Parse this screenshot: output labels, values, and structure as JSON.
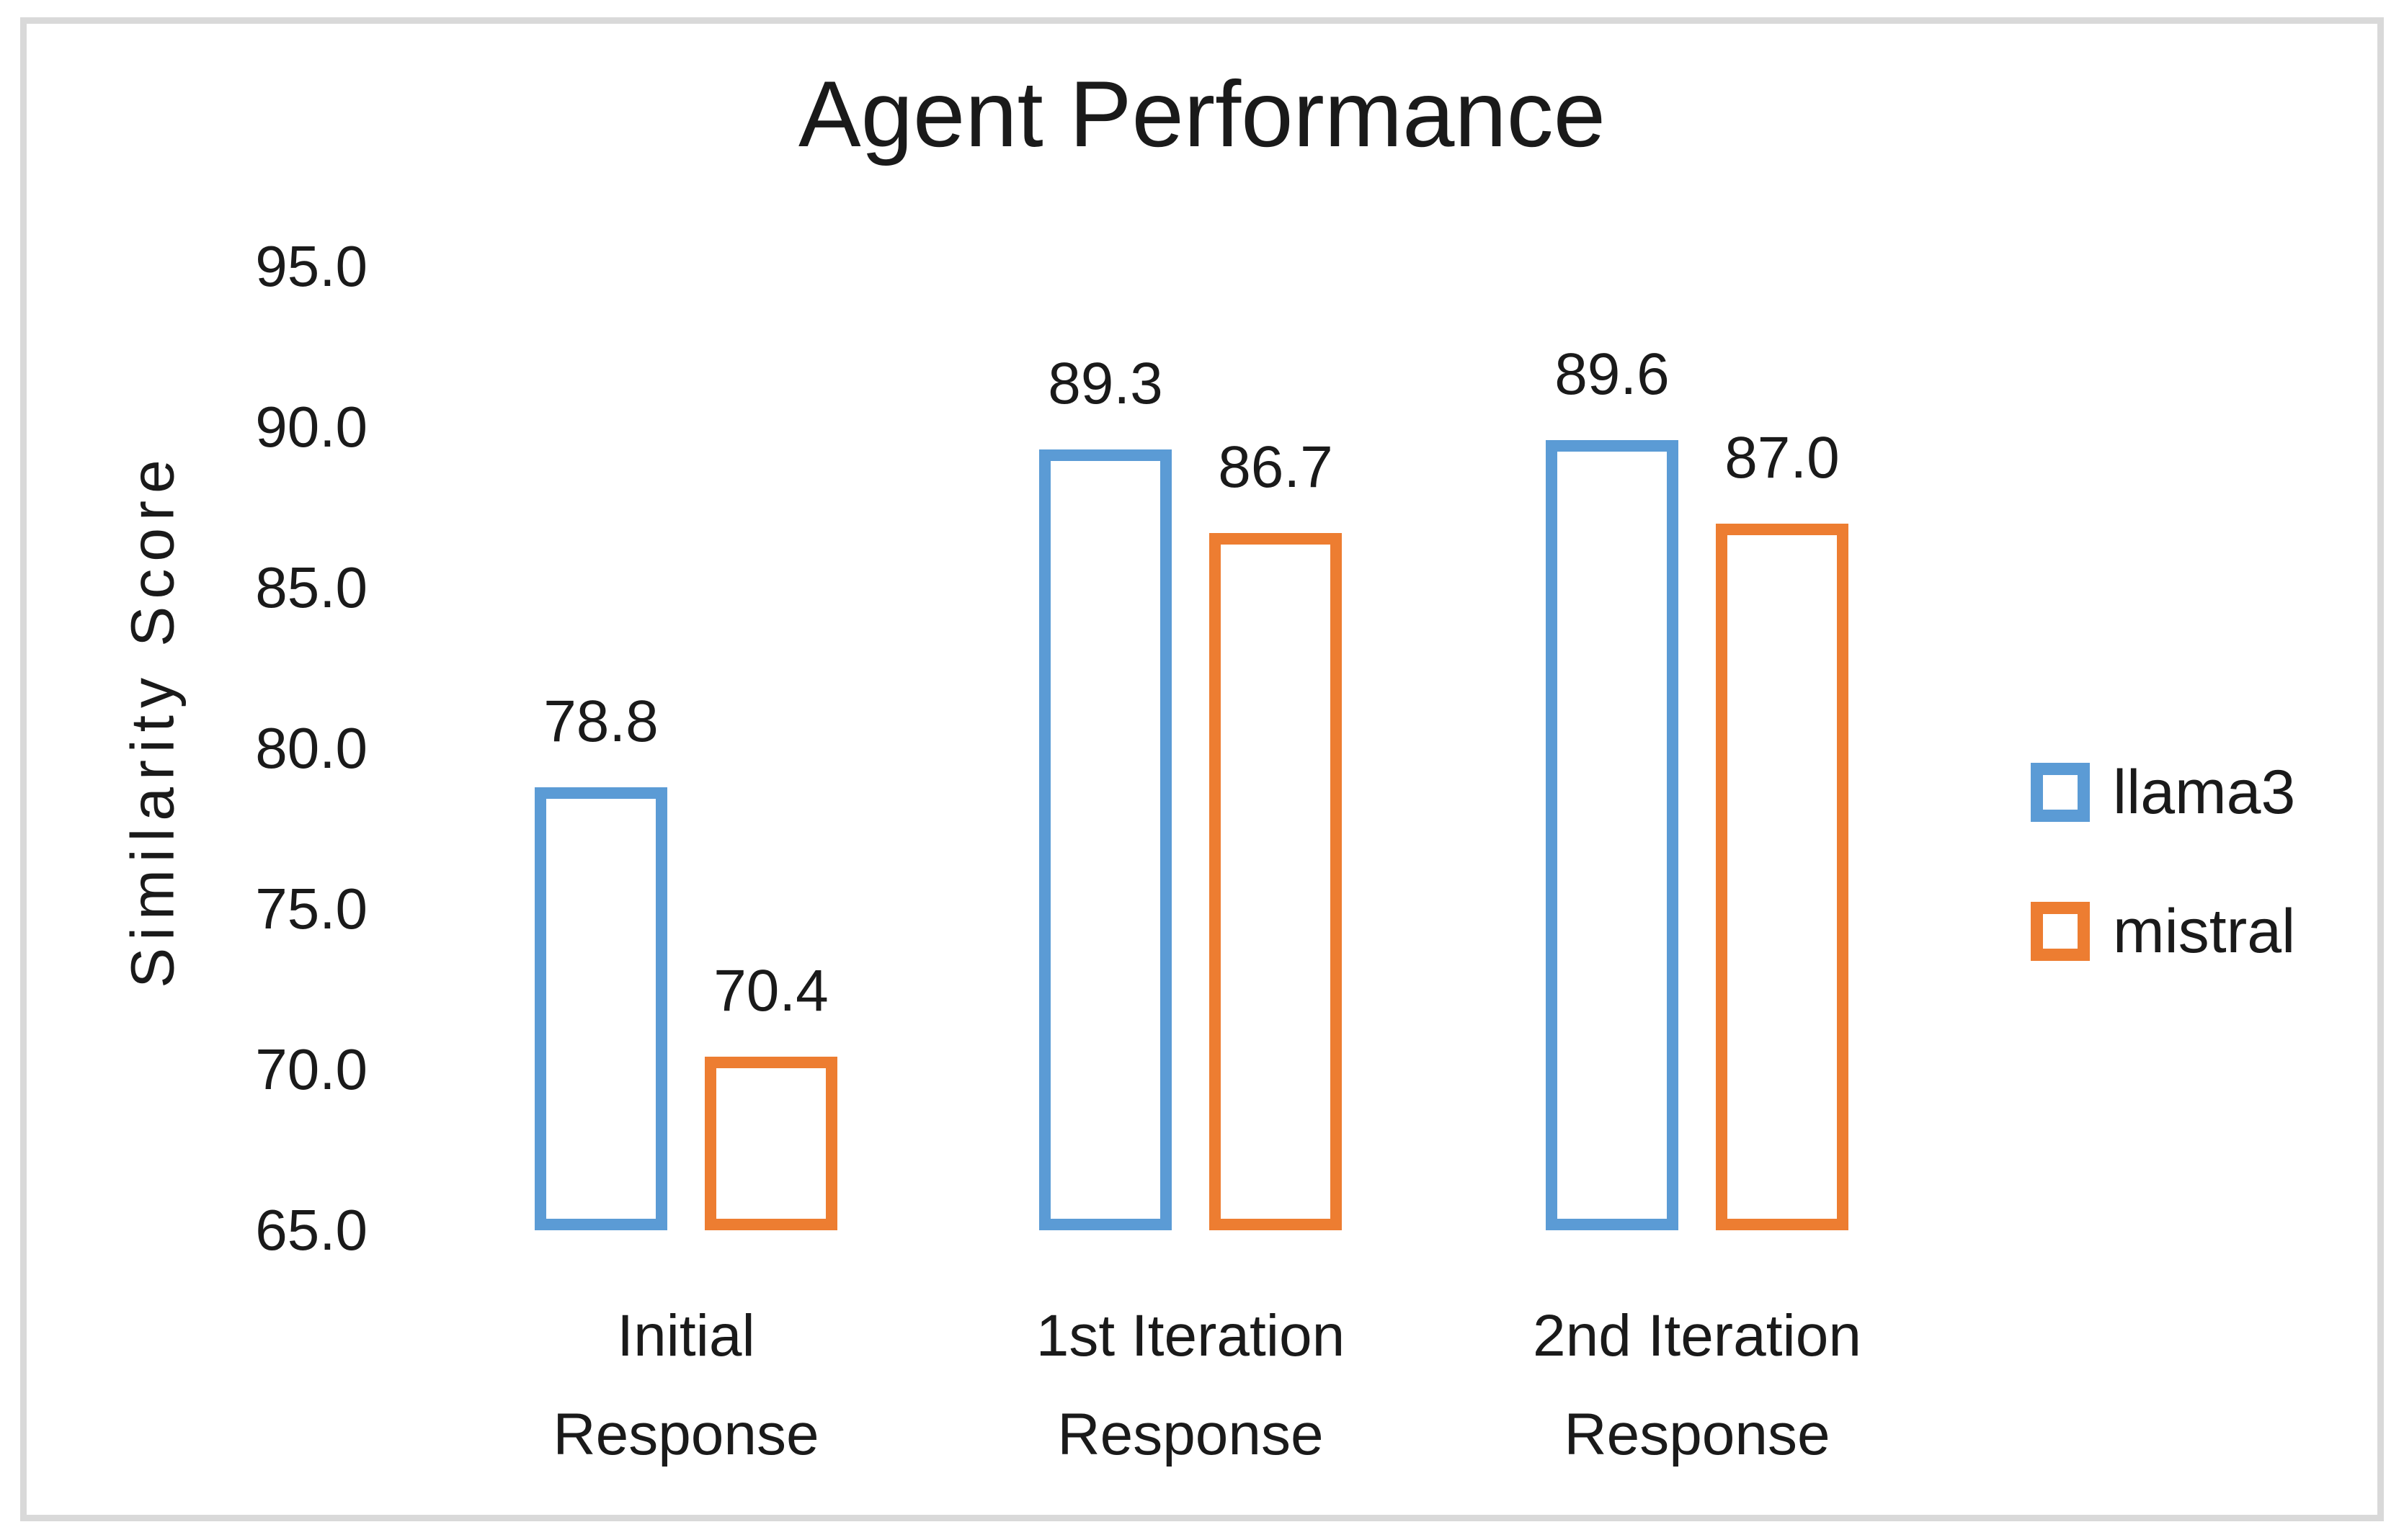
{
  "chart_data": {
    "type": "bar",
    "title": "Agent Performance",
    "ylabel": "Similarity Score",
    "xlabel": "",
    "ylim": [
      65.0,
      95.0
    ],
    "ytick_step": 5.0,
    "ytick_labels": [
      "95.0",
      "90.0",
      "85.0",
      "80.0",
      "75.0",
      "70.0",
      "65.0"
    ],
    "categories": [
      "Initial\nResponse",
      "1st Iteration\nResponse",
      "2nd Iteration\nResponse"
    ],
    "series": [
      {
        "name": "llama3",
        "color": "#5B9BD5",
        "values": [
          78.8,
          89.3,
          89.6
        ],
        "data_labels": [
          "78.8",
          "89.3",
          "89.6"
        ]
      },
      {
        "name": "mistral",
        "color": "#ED7D31",
        "values": [
          70.4,
          86.7,
          87.0
        ],
        "data_labels": [
          "70.4",
          "86.7",
          "87.0"
        ]
      }
    ],
    "legend_position": "right",
    "grid": false,
    "bar_style": "hollow-outline",
    "data_labels_shown": true
  },
  "style": {
    "frame_border_color": "#D9D9D9",
    "background": "#FFFFFF",
    "text_color": "#1A1A1A"
  }
}
